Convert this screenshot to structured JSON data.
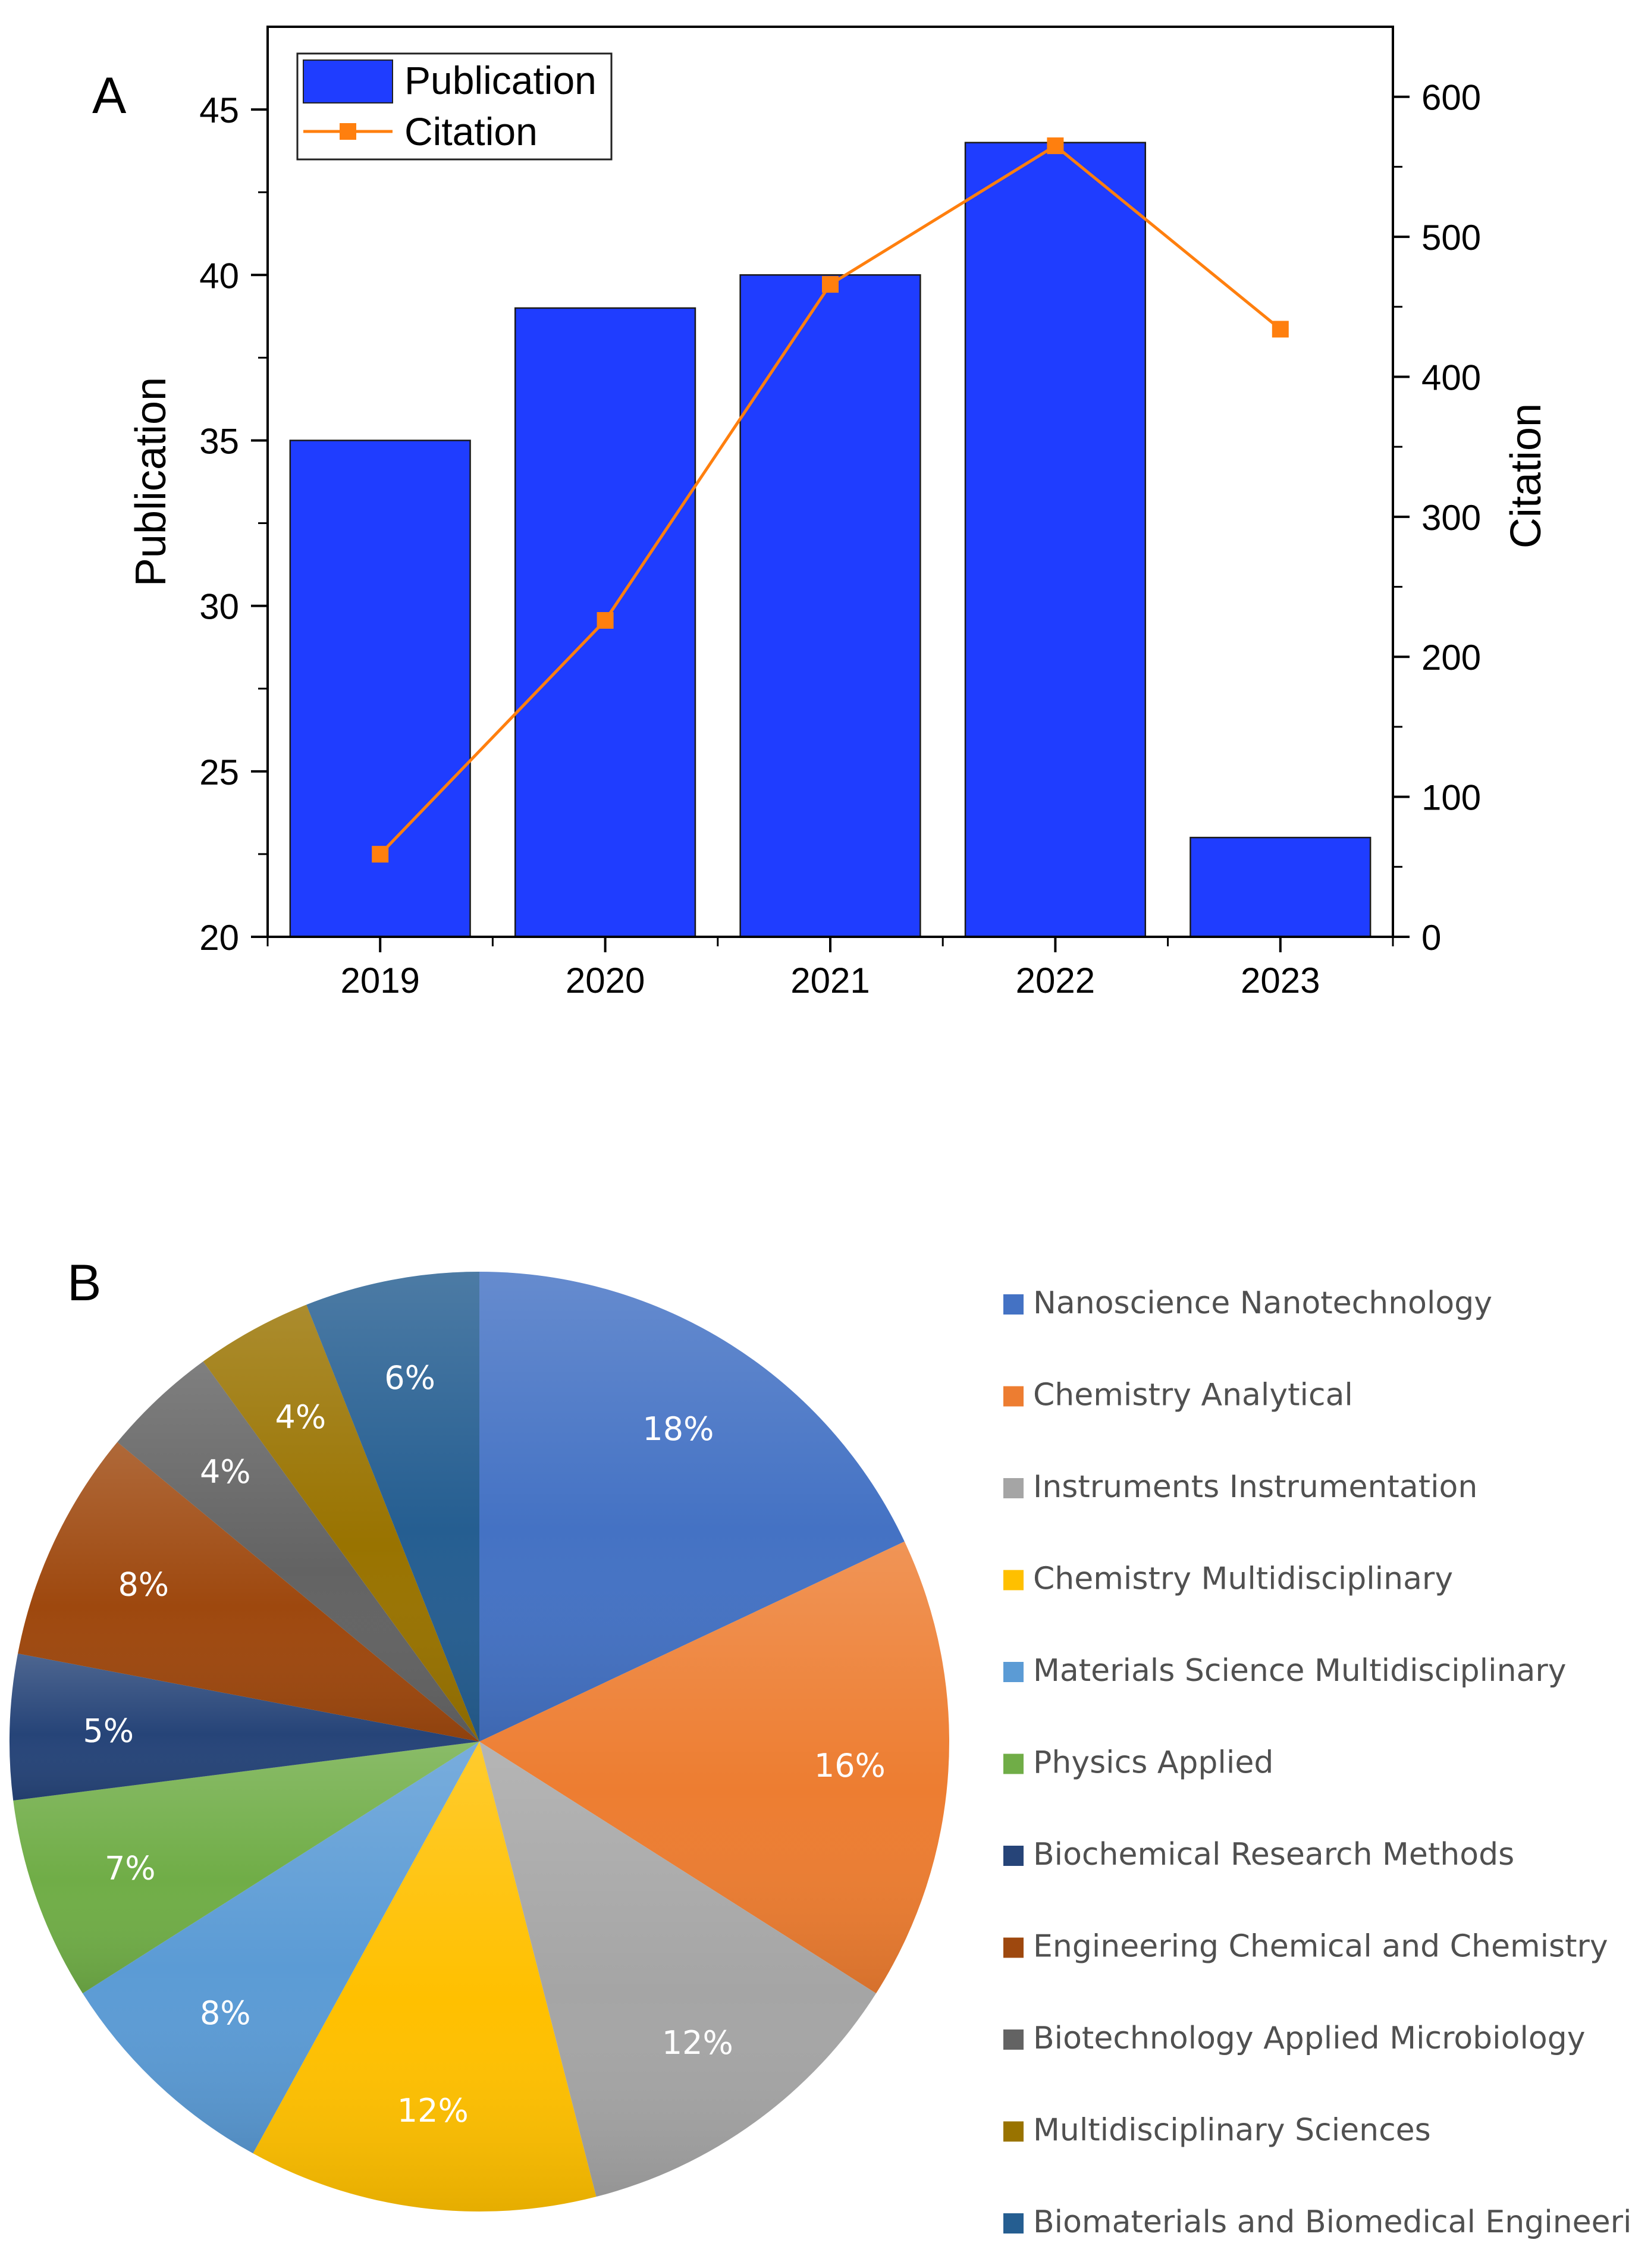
{
  "chart_data": [
    {
      "panel": "A",
      "type": "bar",
      "categories": [
        "2019",
        "2020",
        "2021",
        "2022",
        "2023"
      ],
      "series": [
        {
          "name": "Publication",
          "type": "bar",
          "axis": "left",
          "values": [
            35,
            39,
            40,
            44,
            23
          ],
          "color": "#1F3DFF"
        },
        {
          "name": "Citation",
          "type": "line",
          "axis": "right",
          "values": [
            59,
            226,
            466,
            565,
            434
          ],
          "color": "#FF7F0E"
        }
      ],
      "ylabel": "Publication",
      "ylabel_right": "Citation",
      "ylim": [
        20,
        47.5
      ],
      "ylim_right": [
        0,
        650
      ],
      "yticks": [
        20,
        25,
        30,
        35,
        40,
        45
      ],
      "yticks_right": [
        0,
        100,
        200,
        300,
        400,
        500,
        600
      ],
      "legend": "top-left",
      "grid": false
    },
    {
      "panel": "B",
      "type": "pie",
      "labels": [
        "Nanoscience Nanotechnology",
        "Chemistry Analytical",
        "Instruments Instrumentation",
        "Chemistry Multidisciplinary",
        "Materials Science Multidisciplinary",
        "Physics Applied",
        "Biochemical Research Methods",
        "Engineering Chemical and Chemistry",
        "Biotechnology Applied Microbiology",
        "Multidisciplinary Sciences",
        "Biomaterials and Biomedical Engineering"
      ],
      "values": [
        18,
        16,
        12,
        12,
        8,
        7,
        5,
        8,
        4,
        4,
        6
      ],
      "value_labels": [
        "18%",
        "16%",
        "12%",
        "12%",
        "8%",
        "7%",
        "5%",
        "8%",
        "4%",
        "4%",
        "6%"
      ],
      "colors": [
        "#4472C4",
        "#ED7D31",
        "#A5A5A5",
        "#FFC000",
        "#5B9BD5",
        "#70AD47",
        "#264478",
        "#9E480E",
        "#636363",
        "#997300",
        "#255E91"
      ],
      "legend": "right"
    }
  ]
}
